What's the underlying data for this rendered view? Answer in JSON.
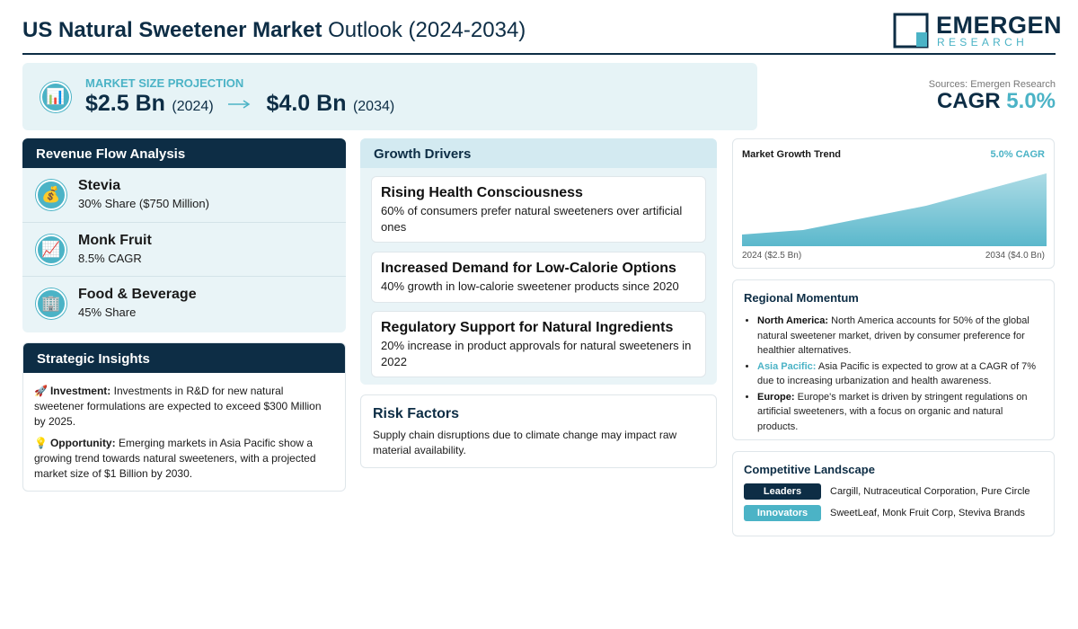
{
  "header": {
    "title_bold": "US Natural Sweetener Market",
    "title_rest": "Outlook (2024-2034)",
    "logo_top": "EMERGEN",
    "logo_bottom": "RESEARCH"
  },
  "projection": {
    "icon": "📊",
    "label": "MARKET SIZE PROJECTION",
    "start_value": "$2.5 Bn",
    "start_year": "(2024)",
    "end_value": "$4.0 Bn",
    "end_year": "(2034)"
  },
  "summary": {
    "source": "Sources: Emergen Research",
    "cagr_label": "CAGR",
    "cagr_value": "5.0%"
  },
  "revenue_flow": {
    "title": "Revenue Flow Analysis",
    "items": [
      {
        "icon": "💰",
        "name": "Stevia",
        "detail": "30% Share ($750 Million)"
      },
      {
        "icon": "📈",
        "name": "Monk Fruit",
        "detail": "8.5% CAGR"
      },
      {
        "icon": "🏢",
        "name": "Food & Beverage",
        "detail": "45% Share"
      }
    ]
  },
  "strategic_insights": {
    "title": "Strategic Insights",
    "items": [
      {
        "icon": "🚀",
        "label": "Investment:",
        "text": "Investments in R&D for new natural sweetener formulations are expected to exceed $300 Million by 2025."
      },
      {
        "icon": "💡",
        "label": "Opportunity:",
        "text": "Emerging markets in Asia Pacific show a growing trend towards natural sweeteners, with a projected market size of $1 Billion by 2030."
      }
    ]
  },
  "growth_drivers": {
    "title": "Growth Drivers",
    "items": [
      {
        "title": "Rising Health Consciousness",
        "text": "60% of consumers prefer natural sweeteners over artificial ones"
      },
      {
        "title": "Increased Demand for Low-Calorie Options",
        "text": "40% growth in low-calorie sweetener products since 2020"
      },
      {
        "title": "Regulatory Support for Natural Ingredients",
        "text": "20% increase in product approvals for natural sweeteners in 2022"
      }
    ]
  },
  "risk_factors": {
    "title": "Risk Factors",
    "text": "Supply chain disruptions due to climate change may impact raw material availability."
  },
  "growth_trend": {
    "title": "Market Growth Trend",
    "badge": "5.0% CAGR",
    "start_label": "2024 ($2.5 Bn)",
    "end_label": "2034 ($4.0 Bn)"
  },
  "regional_momentum": {
    "title": "Regional Momentum",
    "items": [
      {
        "region": "North America:",
        "text": "North America accounts for 50% of the global natural sweetener market, driven by consumer preference for healthier alternatives."
      },
      {
        "region": "Asia Pacific:",
        "text": "Asia Pacific is expected to grow at a CAGR of 7% due to increasing urbanization and health awareness."
      },
      {
        "region": "Europe:",
        "text": "Europe's market is driven by stringent regulations on artificial sweeteners, with a focus on organic and natural products."
      }
    ]
  },
  "competitive_landscape": {
    "title": "Competitive Landscape",
    "rows": [
      {
        "tag": "Leaders",
        "companies": "Cargill, Nutraceutical Corporation, Pure Circle"
      },
      {
        "tag": "Innovators",
        "companies": "SweetLeaf, Monk Fruit Corp, Steviva Brands"
      }
    ]
  }
}
